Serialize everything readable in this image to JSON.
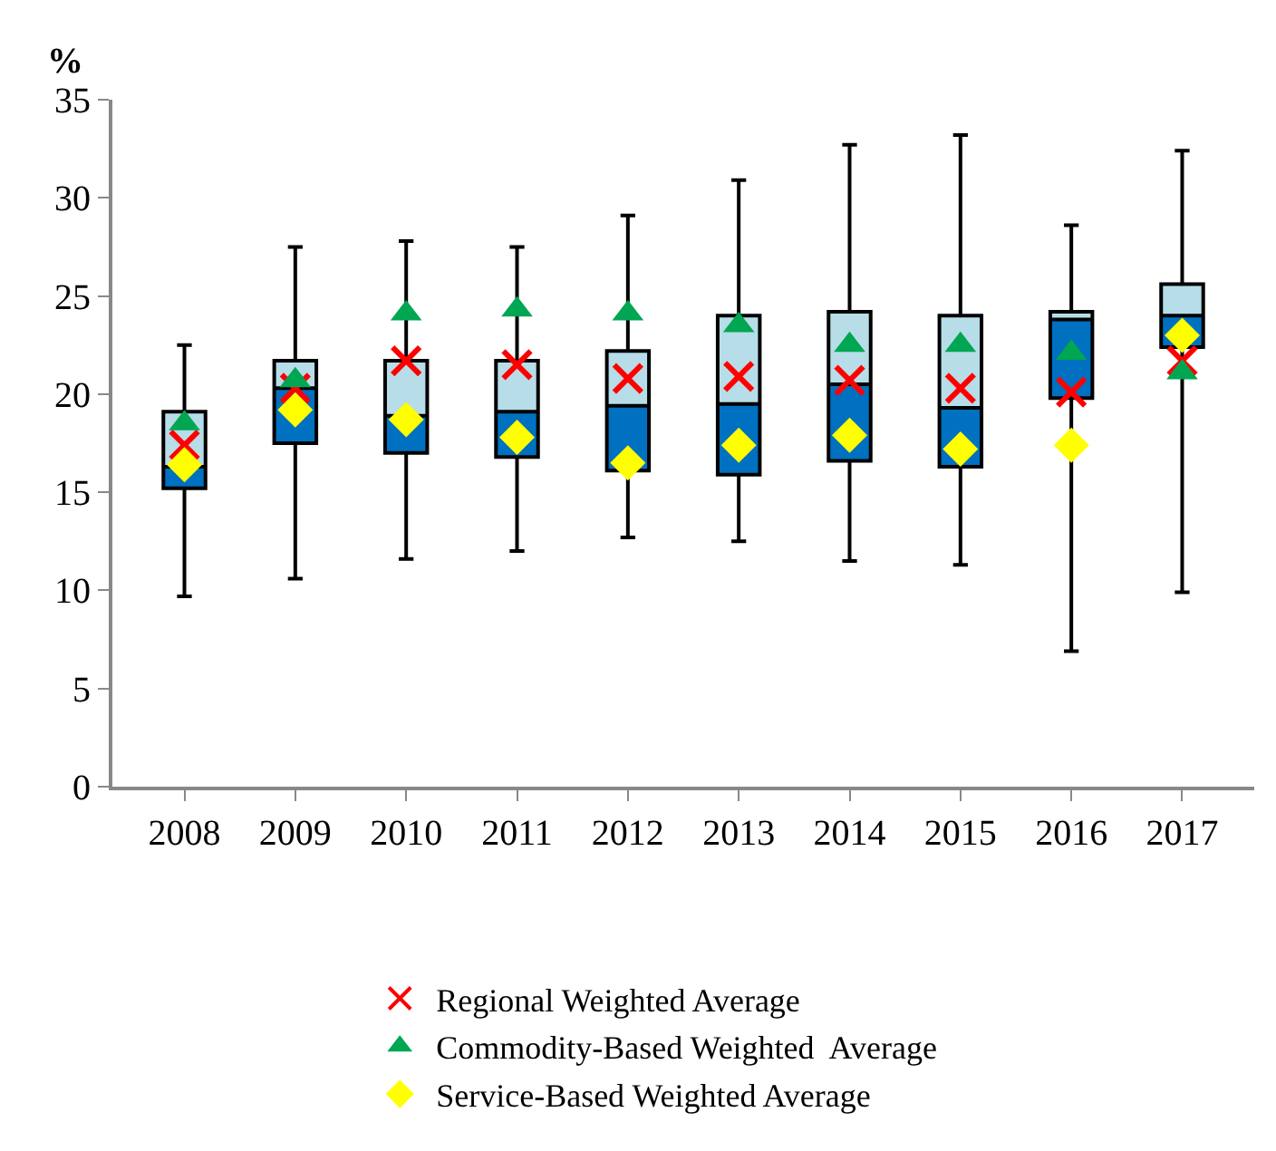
{
  "chart_data": {
    "type": "box",
    "ylabel": "%",
    "categories": [
      "2008",
      "2009",
      "2010",
      "2011",
      "2012",
      "2013",
      "2014",
      "2015",
      "2016",
      "2017"
    ],
    "ylim": [
      0,
      35
    ],
    "yticks": [
      0,
      5,
      10,
      15,
      20,
      25,
      30,
      35
    ],
    "grid": false,
    "legend": "bottom",
    "series": [
      {
        "color": "#0070c0",
        "boxes": [
          {
            "low": 9.7,
            "q1": 15.2,
            "median": 16.3,
            "q3": 19.1,
            "high": 22.5
          },
          {
            "low": 10.6,
            "q1": 17.5,
            "median": 20.3,
            "q3": 21.7,
            "high": 27.5
          },
          {
            "low": 11.6,
            "q1": 17.0,
            "median": 18.9,
            "q3": 21.7,
            "high": 27.8
          },
          {
            "low": 12.0,
            "q1": 16.8,
            "median": 19.1,
            "q3": 21.7,
            "high": 27.5
          },
          {
            "low": 12.7,
            "q1": 16.1,
            "median": 19.4,
            "q3": 22.2,
            "high": 29.1
          },
          {
            "low": 12.5,
            "q1": 15.9,
            "median": 19.5,
            "q3": 24.0,
            "high": 30.9
          },
          {
            "low": 11.5,
            "q1": 16.6,
            "median": 20.5,
            "q3": 24.2,
            "high": 32.7
          },
          {
            "low": 11.3,
            "q1": 16.3,
            "median": 19.3,
            "q3": 24.0,
            "high": 33.2
          },
          {
            "low": 6.9,
            "q1": 19.8,
            "median": 23.8,
            "q3": 24.2,
            "high": 28.6
          },
          {
            "low": 9.9,
            "q1": 22.4,
            "median": 24.0,
            "q3": 25.6,
            "high": 32.4
          }
        ]
      },
      {
        "type": "scatter",
        "name": "Regional Weighted Average",
        "color": "#ff0000",
        "marker": "cross",
        "values": [
          17.4,
          20.3,
          21.7,
          21.5,
          20.8,
          20.9,
          20.7,
          20.3,
          20.1,
          21.7
        ]
      },
      {
        "type": "scatter",
        "name": "Commodity-Based Weighted  Average",
        "color": "#00a651",
        "marker": "triangle",
        "values": [
          18.5,
          20.7,
          24.1,
          24.3,
          24.1,
          23.5,
          22.5,
          22.5,
          22.1,
          21.1
        ]
      },
      {
        "type": "scatter",
        "name": "Service-Based Weighted Average",
        "color": "#ffff00",
        "marker": "diamond",
        "values": [
          16.4,
          19.2,
          18.7,
          17.8,
          16.5,
          17.4,
          17.9,
          17.2,
          17.4,
          23.0
        ]
      }
    ]
  }
}
